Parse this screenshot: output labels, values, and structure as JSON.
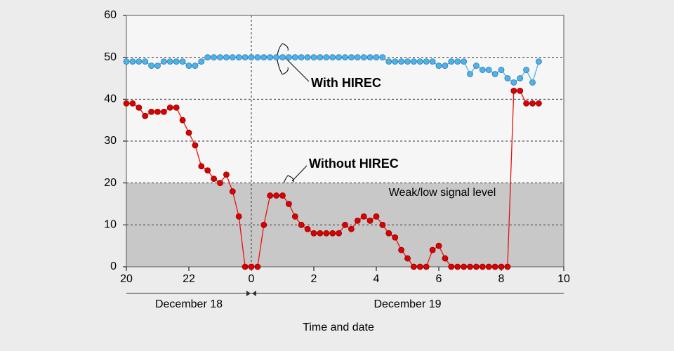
{
  "chart_data": {
    "type": "line",
    "x": [
      0,
      0.2,
      0.4,
      0.6,
      0.8,
      1,
      1.2,
      1.4,
      1.6,
      1.8,
      2,
      2.2,
      2.4,
      2.6,
      2.8,
      3,
      3.2,
      3.4,
      3.6,
      3.8,
      4,
      4.2,
      4.4,
      4.6,
      4.8,
      5,
      5.2,
      5.4,
      5.6,
      5.8,
      6,
      6.2,
      6.4,
      6.6,
      6.8,
      7,
      7.2,
      7.4,
      7.6,
      7.8,
      8,
      8.2,
      8.4,
      8.6,
      8.8,
      9,
      9.2,
      9.4,
      9.6,
      9.8,
      10,
      10.2,
      10.4,
      10.6,
      10.8,
      11,
      11.2,
      11.4,
      11.6,
      11.8,
      12,
      12.2,
      12.4,
      12.6,
      12.8,
      13,
      13.2
    ],
    "series": [
      {
        "name": "With HIREC",
        "color": "#4fb3e8",
        "line_color": "#5aaee0",
        "edge_color": "#2a78b0",
        "values": [
          49,
          49,
          49,
          49,
          48,
          48,
          49,
          49,
          49,
          49,
          48,
          48,
          49,
          50,
          50,
          50,
          50,
          50,
          50,
          50,
          50,
          50,
          50,
          50,
          50,
          50,
          50,
          50,
          50,
          50,
          50,
          50,
          50,
          50,
          50,
          50,
          50,
          50,
          50,
          50,
          50,
          50,
          49,
          49,
          49,
          49,
          49,
          49,
          49,
          49,
          48,
          48,
          49,
          49,
          49,
          46,
          48,
          47,
          47,
          46,
          47,
          45,
          44,
          45,
          47,
          44,
          49
        ]
      },
      {
        "name": "Without HIREC",
        "color": "#dd0000",
        "line_color": "#e81010",
        "edge_color": "#8a0000",
        "values": [
          39,
          39,
          38,
          36,
          37,
          37,
          37,
          38,
          38,
          35,
          32,
          29,
          24,
          23,
          21,
          20,
          22,
          18,
          12,
          0,
          0,
          0,
          10,
          17,
          17,
          17,
          15,
          12,
          10,
          9,
          8,
          8,
          8,
          8,
          8,
          10,
          9,
          11,
          12,
          11,
          12,
          10,
          8,
          7,
          4,
          2,
          0,
          0,
          0,
          4,
          5,
          2,
          0,
          0,
          0,
          0,
          0,
          0,
          0,
          0,
          0,
          0,
          42,
          42,
          39,
          39,
          39
        ]
      }
    ],
    "xlim": [
      0,
      14
    ],
    "ylim": [
      0,
      60
    ],
    "xticks": [
      {
        "value": 0,
        "label": "20"
      },
      {
        "value": 2,
        "label": "22"
      },
      {
        "value": 4,
        "label": "0"
      },
      {
        "value": 6,
        "label": "2"
      },
      {
        "value": 8,
        "label": "4"
      },
      {
        "value": 10,
        "label": "6"
      },
      {
        "value": 12,
        "label": "8"
      },
      {
        "value": 14,
        "label": "10"
      }
    ],
    "yticks": [
      0,
      10,
      20,
      30,
      40,
      50,
      60
    ],
    "grid": true,
    "divider_x": 4,
    "band": {
      "label": "Weak/low signal level",
      "from": 0,
      "to": 20
    },
    "date_spans": [
      {
        "label": "December 18",
        "from": 0,
        "to": 4
      },
      {
        "label": "December 19",
        "from": 4,
        "to": 14
      }
    ],
    "x_label": "Time and date"
  }
}
